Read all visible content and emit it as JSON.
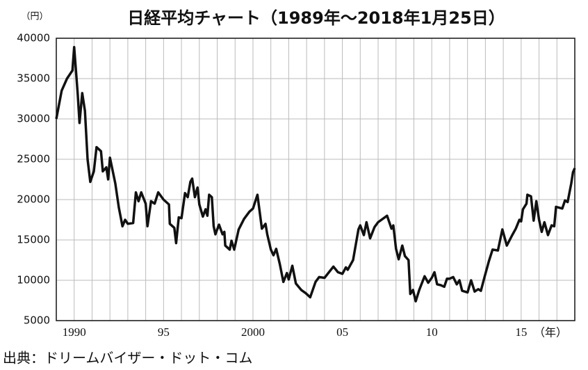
{
  "chart_data": {
    "type": "line",
    "title": "日経平均チャート（1989年～2018年1月25日）",
    "y_unit": "（円）",
    "x_unit": "（年）",
    "source": "出典：ドリームバイザー・ドット・コム",
    "color": "#111111",
    "grid": true,
    "xlim": [
      1989,
      2018
    ],
    "ylim": [
      5000,
      40000
    ],
    "yticks": [
      5000,
      10000,
      15000,
      20000,
      25000,
      30000,
      35000,
      40000
    ],
    "xticks": [
      1990,
      {
        "value": 1995,
        "label": "95"
      },
      2000,
      {
        "value": 2005,
        "label": "05"
      },
      {
        "value": 2010,
        "label": "10"
      },
      {
        "value": 2015,
        "label": "15"
      }
    ],
    "x_grid": [
      1990,
      1991,
      1992,
      1993,
      1994,
      1995,
      1996,
      1997,
      1998,
      1999,
      2000,
      2001,
      2002,
      2003,
      2004,
      2005,
      2006,
      2007,
      2008,
      2009,
      2010,
      2011,
      2012,
      2013,
      2014,
      2015,
      2016,
      2017
    ],
    "x": [
      1989.0,
      1989.3,
      1989.6,
      1989.9,
      1990.0,
      1990.2,
      1990.3,
      1990.45,
      1990.6,
      1990.75,
      1990.9,
      1991.1,
      1991.25,
      1991.5,
      1991.6,
      1991.8,
      1991.9,
      1992.0,
      1992.3,
      1992.5,
      1992.7,
      1992.85,
      1993.0,
      1993.3,
      1993.45,
      1993.6,
      1993.75,
      1994.0,
      1994.1,
      1994.3,
      1994.5,
      1994.7,
      1995.0,
      1995.3,
      1995.35,
      1995.6,
      1995.7,
      1995.85,
      1996.0,
      1996.2,
      1996.35,
      1996.5,
      1996.6,
      1996.75,
      1996.9,
      1997.0,
      1997.2,
      1997.35,
      1997.45,
      1997.55,
      1997.7,
      1997.8,
      1997.9,
      1998.1,
      1998.3,
      1998.4,
      1998.45,
      1998.7,
      1998.8,
      1998.95,
      1999.2,
      1999.5,
      1999.8,
      2000.0,
      2000.25,
      2000.5,
      2000.7,
      2000.8,
      2001.0,
      2001.15,
      2001.3,
      2001.5,
      2001.7,
      2001.9,
      2002.0,
      2002.2,
      2002.4,
      2002.7,
      2002.95,
      2003.2,
      2003.5,
      2003.7,
      2004.0,
      2004.5,
      2004.75,
      2005.0,
      2005.2,
      2005.3,
      2005.6,
      2005.9,
      2006.0,
      2006.2,
      2006.35,
      2006.55,
      2006.8,
      2007.0,
      2007.5,
      2007.75,
      2007.85,
      2008.0,
      2008.15,
      2008.35,
      2008.5,
      2008.7,
      2008.8,
      2008.95,
      2009.1,
      2009.3,
      2009.6,
      2009.8,
      2010.0,
      2010.15,
      2010.3,
      2010.5,
      2010.7,
      2010.85,
      2011.0,
      2011.2,
      2011.4,
      2011.55,
      2011.7,
      2012.0,
      2012.2,
      2012.4,
      2012.6,
      2012.75,
      2012.95,
      2013.2,
      2013.4,
      2013.7,
      2013.95,
      2014.2,
      2014.5,
      2014.7,
      2014.9,
      2015.0,
      2015.1,
      2015.3,
      2015.35,
      2015.55,
      2015.7,
      2015.85,
      2016.0,
      2016.15,
      2016.3,
      2016.5,
      2016.7,
      2016.85,
      2016.95,
      2017.3,
      2017.45,
      2017.6,
      2017.8,
      2017.9,
      2018.0
    ],
    "values": [
      30000,
      33500,
      35000,
      36000,
      38900,
      33000,
      29500,
      33200,
      31000,
      25000,
      22200,
      23500,
      26500,
      26000,
      23500,
      24000,
      22500,
      25200,
      22000,
      19000,
      16700,
      17500,
      17000,
      17100,
      20900,
      19800,
      20900,
      19500,
      16700,
      19800,
      19500,
      20900,
      20000,
      19400,
      17000,
      16500,
      14600,
      17800,
      17700,
      20800,
      20300,
      22200,
      22600,
      20300,
      21500,
      19400,
      17900,
      18800,
      18000,
      20600,
      20300,
      16700,
      15700,
      16900,
      15700,
      16000,
      14300,
      13800,
      14900,
      13800,
      16300,
      17600,
      18500,
      18900,
      20600,
      16400,
      17000,
      15700,
      13800,
      13100,
      13900,
      12000,
      9800,
      10900,
      10100,
      11800,
      9600,
      8800,
      8400,
      7900,
      9800,
      10400,
      10300,
      11700,
      11000,
      10800,
      11600,
      11300,
      12500,
      16300,
      16800,
      15600,
      17200,
      15200,
      16600,
      17200,
      18000,
      16400,
      16800,
      13900,
      12600,
      14300,
      13000,
      12500,
      8300,
      8800,
      7400,
      8800,
      10500,
      9700,
      10300,
      11000,
      9500,
      9400,
      9200,
      10200,
      10200,
      10400,
      9500,
      10000,
      8700,
      8500,
      10000,
      8600,
      8900,
      8700,
      10400,
      12400,
      13800,
      13700,
      16300,
      14300,
      15600,
      16400,
      17500,
      17300,
      18800,
      19500,
      20600,
      20400,
      17400,
      19800,
      17500,
      16000,
      17200,
      15600,
      16800,
      16700,
      19100,
      18900,
      19900,
      19700,
      22000,
      23400,
      23900
    ]
  }
}
